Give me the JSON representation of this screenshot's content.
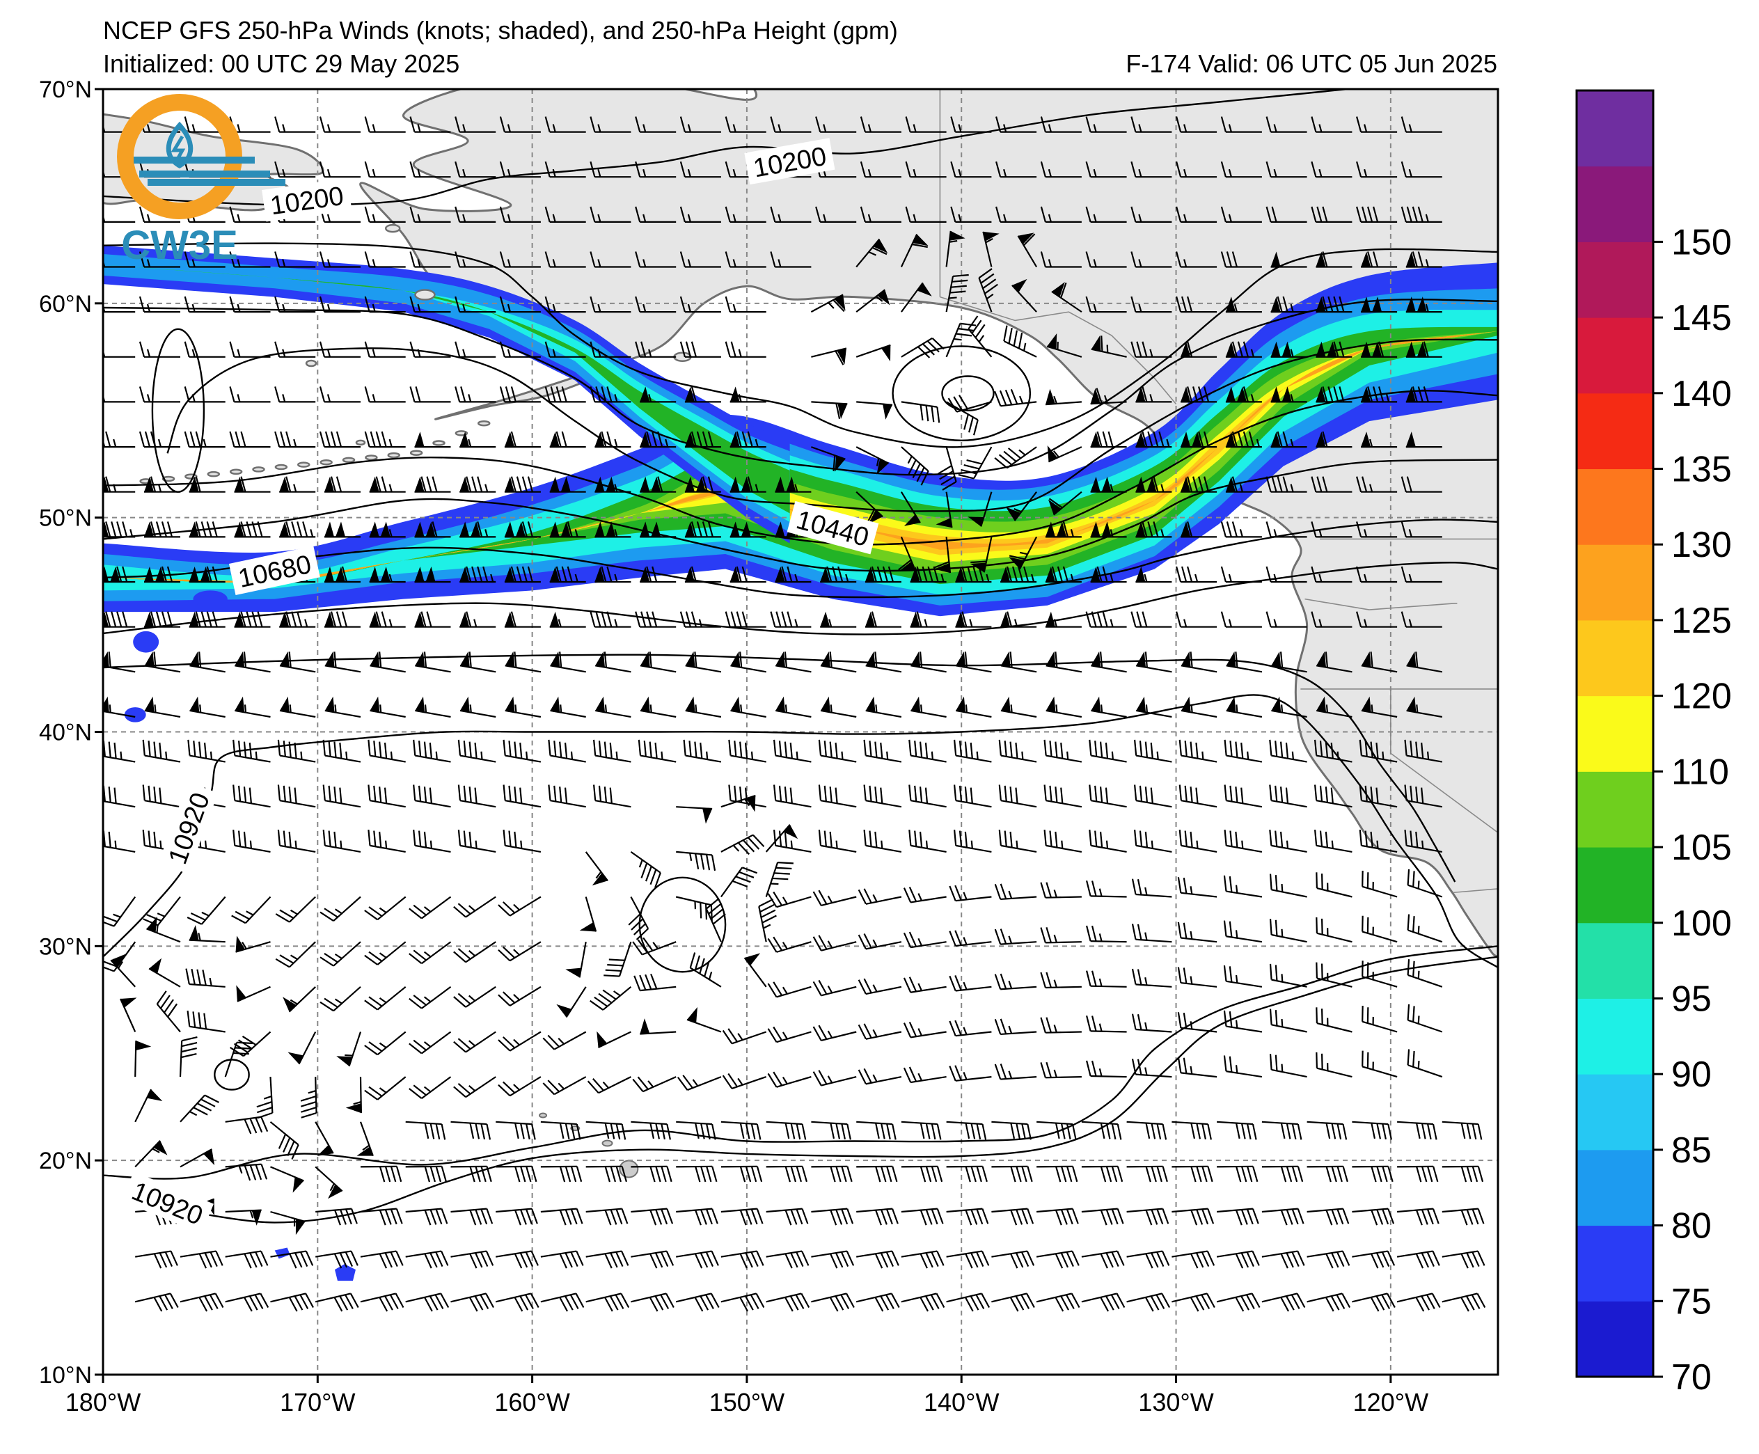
{
  "title": {
    "line1": "NCEP GFS 250-hPa Winds (knots; shaded), and 250-hPa Height (gpm)",
    "initialized": "Initialized: 00 UTC 29 May 2025",
    "valid": "F-174  Valid: 06 UTC 05 Jun 2025"
  },
  "logo": {
    "text": "CW3E",
    "icon": "cw3e-logo-icon",
    "colors": {
      "ring": "#f5a023",
      "waves": "#2b8db8"
    }
  },
  "map": {
    "lon_range": [
      -180,
      -115
    ],
    "lat_range": [
      10,
      70
    ],
    "lat_labels": [
      "70°N",
      "60°N",
      "50°N",
      "40°N",
      "30°N",
      "20°N",
      "10°N"
    ],
    "lon_labels": [
      "180°W",
      "170°W",
      "160°W",
      "150°W",
      "140°W",
      "130°W",
      "120°W"
    ],
    "land_color": "#e6e6e6",
    "coast_color": "#707070"
  },
  "contours": {
    "labels": [
      {
        "text": "10200",
        "lon": -170.5,
        "lat": 64.8,
        "rotate": -8
      },
      {
        "text": "10200",
        "lon": -148.0,
        "lat": 66.6,
        "rotate": -10
      },
      {
        "text": "10440",
        "lon": -146.0,
        "lat": 49.5,
        "rotate": 15
      },
      {
        "text": "10680",
        "lon": -172.0,
        "lat": 47.5,
        "rotate": -12
      },
      {
        "text": "10920",
        "lon": -176.0,
        "lat": 35.5,
        "rotate": -70
      },
      {
        "text": "10920",
        "lon": -177.0,
        "lat": 18.0,
        "rotate": 22
      }
    ]
  },
  "colorbar": {
    "ticks": [
      "70",
      "75",
      "80",
      "85",
      "90",
      "95",
      "100",
      "105",
      "110",
      "120",
      "125",
      "130",
      "135",
      "140",
      "145",
      "150"
    ],
    "colors": [
      "#1b1bd0",
      "#2a3cf5",
      "#1d9bf0",
      "#26c8f3",
      "#1ef0e6",
      "#23e0a8",
      "#22b326",
      "#6fcf1e",
      "#fafa1a",
      "#fdc81c",
      "#fda21e",
      "#fd771d",
      "#f52b14",
      "#d81a3c",
      "#b0195a",
      "#8a197a",
      "#6f2ea0"
    ]
  },
  "jet": {
    "speed_levels_kt": [
      70,
      90,
      105,
      120,
      125
    ],
    "axis": [
      [
        -180,
        47.2
      ],
      [
        -172,
        47.0
      ],
      [
        -166,
        48.0
      ],
      [
        -160,
        49.0
      ],
      [
        -155,
        50.2
      ],
      [
        -151,
        51.2
      ],
      [
        -146,
        49.8
      ],
      [
        -141,
        48.7
      ],
      [
        -136,
        48.9
      ],
      [
        -131,
        50.8
      ],
      [
        -128,
        53.3
      ],
      [
        -125,
        56.0
      ],
      [
        -121,
        57.9
      ],
      [
        -115,
        58.7
      ]
    ],
    "branch": [
      [
        -180,
        61.8
      ],
      [
        -172,
        61.2
      ],
      [
        -166,
        60.6
      ],
      [
        -162,
        59.6
      ],
      [
        -158,
        57.8
      ],
      [
        -155,
        55.5
      ],
      [
        -152,
        53.5
      ],
      [
        -150,
        52.2
      ],
      [
        -148,
        51.2
      ]
    ]
  }
}
